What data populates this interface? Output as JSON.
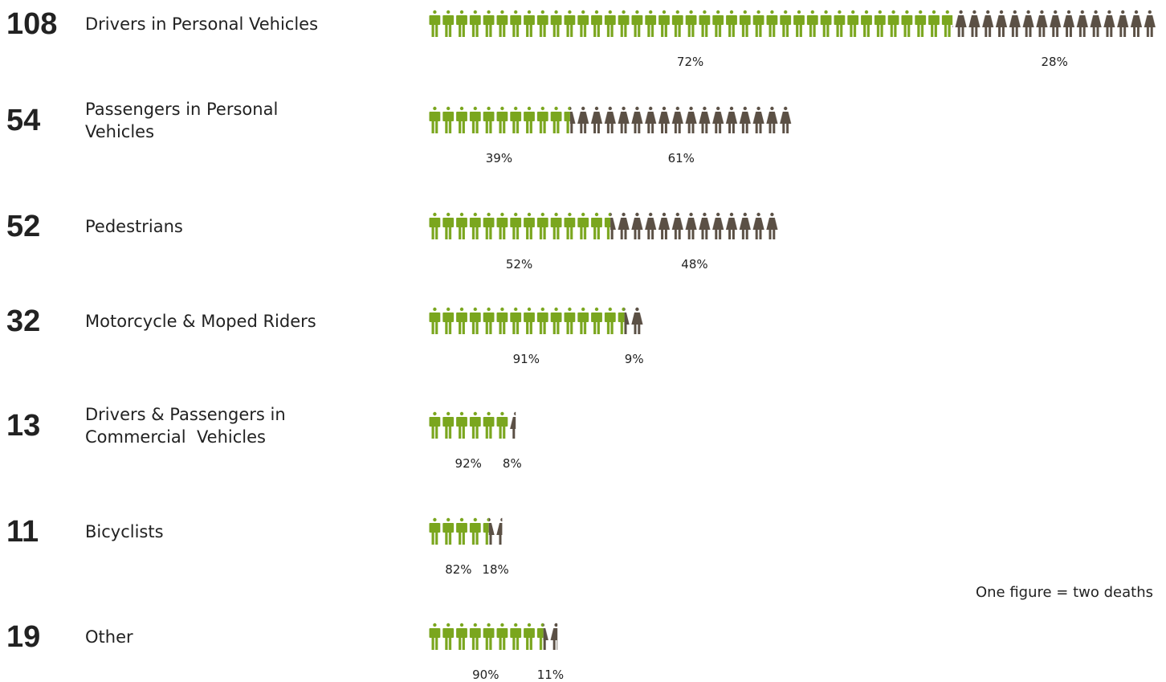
{
  "chart_data": {
    "type": "pictograph",
    "note": "One figure = two deaths",
    "categories": [
      [
        "Drivers in Personal Vehicles"
      ],
      [
        "Passengers in Personal",
        "Vehicles"
      ],
      [
        "Pedestrians"
      ],
      [
        "Motorcycle & Moped Riders"
      ],
      [
        "Drivers & Passengers in",
        "Commercial  Vehicles"
      ],
      [
        "Bicyclists"
      ],
      [
        "Other"
      ]
    ],
    "counts": [
      108,
      54,
      52,
      32,
      13,
      11,
      19
    ],
    "series": [
      {
        "color": "#7aa61e",
        "values": [
          72,
          39,
          52,
          91,
          92,
          82,
          90
        ],
        "value_labels": [
          "72%",
          "39%",
          "52%",
          "91%",
          "92%",
          "82%",
          "90%"
        ]
      },
      {
        "color": "#5b5045",
        "values": [
          28,
          61,
          48,
          9,
          8,
          18,
          11
        ],
        "value_labels": [
          "28%",
          "61%",
          "48%",
          "9%",
          "8%",
          "18%",
          "11%"
        ]
      }
    ]
  }
}
